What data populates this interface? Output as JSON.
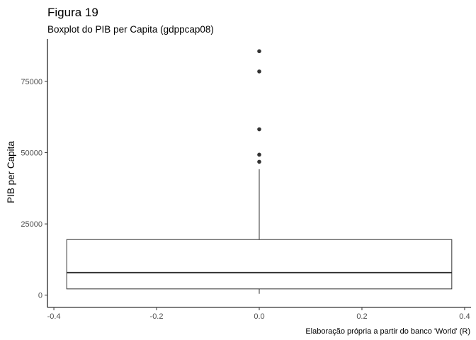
{
  "chart_data": {
    "type": "boxplot",
    "title": "Figura 19",
    "subtitle": "Boxplot do PIB per Capita (gdppcap08)",
    "xlabel": "",
    "ylabel": "PIB per Capita",
    "caption": "Elaboração própria a partir do banco 'World' (R)",
    "xlim": [
      -0.4,
      0.4
    ],
    "ylim": [
      0,
      90000
    ],
    "x_ticks": [
      -0.4,
      -0.2,
      0.0,
      0.2,
      0.4
    ],
    "x_tick_labels": [
      "-0.4",
      "-0.2",
      "0.0",
      "0.2",
      "0.4"
    ],
    "y_ticks": [
      0,
      25000,
      50000,
      75000
    ],
    "y_tick_labels": [
      "0",
      "25000",
      "50000",
      "75000"
    ],
    "grid": false,
    "box": {
      "x": 0.0,
      "x_range": [
        -0.375,
        0.375
      ],
      "whisker_low": 500,
      "q1": 2200,
      "median": 7900,
      "q3": 19500,
      "whisker_high": 44200,
      "outliers": [
        46800,
        49300,
        58200,
        78500,
        85600
      ]
    }
  }
}
